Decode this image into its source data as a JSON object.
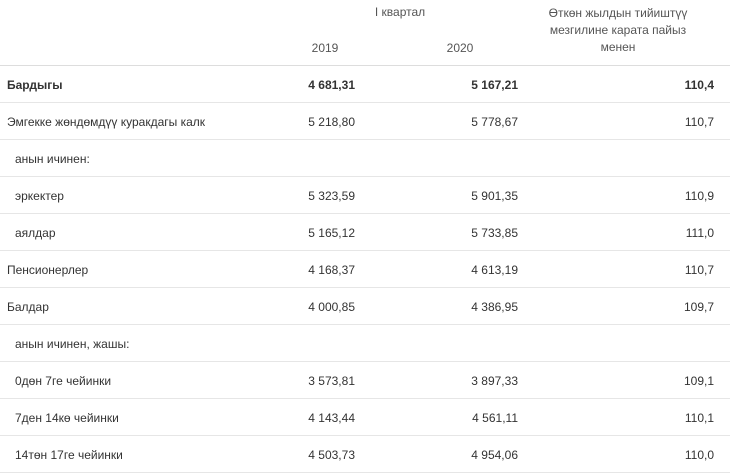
{
  "header": {
    "group": "I квартал",
    "year1": "2019",
    "year2": "2020",
    "pct_line1": "Өткөн жылдын тийиштүү",
    "pct_line2": "мезгилине карата пайыз",
    "pct_line3": "менен"
  },
  "rows": [
    {
      "label": "Бардыгы",
      "v2019": "4 681,31",
      "v2020": "5 167,21",
      "pct": "110,4"
    },
    {
      "label": "Эмгекке жөндөмдүү куракдагы калк",
      "v2019": "5 218,80",
      "v2020": "5 778,67",
      "pct": "110,7"
    },
    {
      "label": "анын ичинен:",
      "v2019": "",
      "v2020": "",
      "pct": ""
    },
    {
      "label": "эркектер",
      "v2019": "5 323,59",
      "v2020": "5 901,35",
      "pct": "110,9"
    },
    {
      "label": "аялдар",
      "v2019": "5 165,12",
      "v2020": "5 733,85",
      "pct": "111,0"
    },
    {
      "label": "Пенсионерлер",
      "v2019": "4 168,37",
      "v2020": "4 613,19",
      "pct": "110,7"
    },
    {
      "label": "Балдар",
      "v2019": "4 000,85",
      "v2020": "4 386,95",
      "pct": "109,7"
    },
    {
      "label": "анын ичинен, жашы:",
      "v2019": "",
      "v2020": "",
      "pct": ""
    },
    {
      "label": "0дөн 7ге чейинки",
      "v2019": "3 573,81",
      "v2020": "3 897,33",
      "pct": "109,1"
    },
    {
      "label": "7ден 14кө чейинки",
      "v2019": "4 143,44",
      "v2020": "4 561,11",
      "pct": "110,1"
    },
    {
      "label": "14төн 17ге чейинки",
      "v2019": "4 503,73",
      "v2020": "4 954,06",
      "pct": "110,0"
    }
  ]
}
